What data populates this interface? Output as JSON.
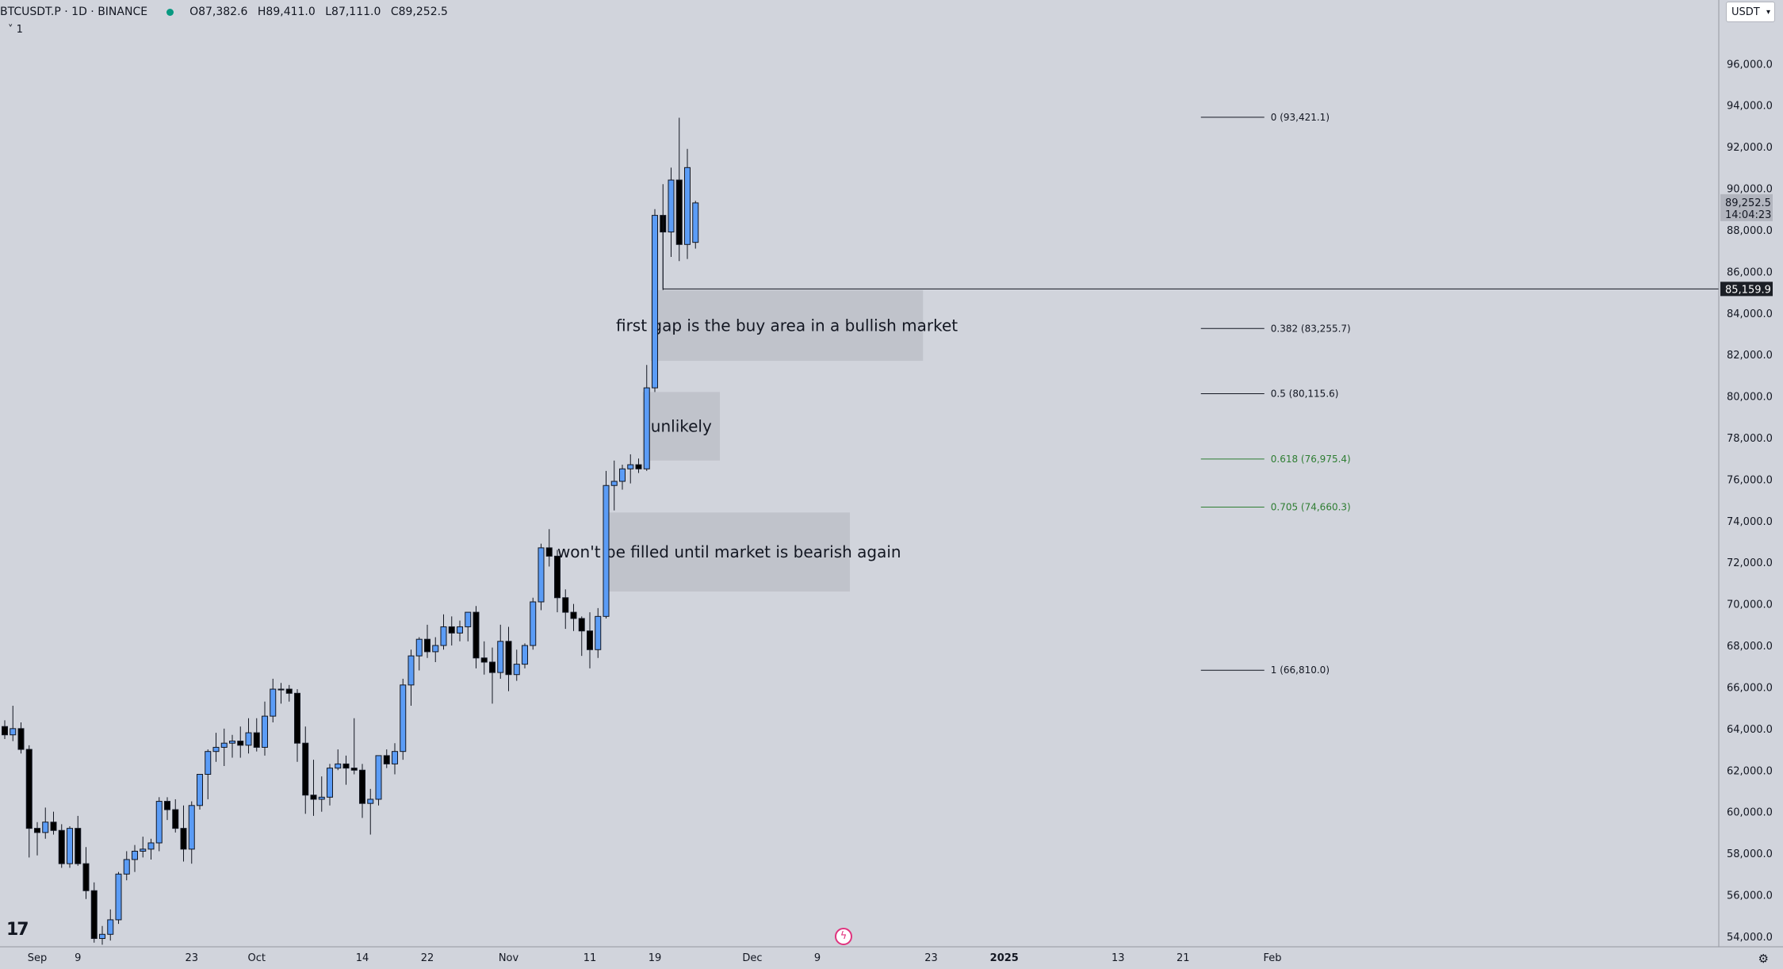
{
  "header": {
    "symbol": "BTCUSDT.P · 1D · BINANCE",
    "open": "O87,382.6",
    "high": "H89,411.0",
    "low": "L87,111.0",
    "close": "C89,252.5",
    "collapse_label": "˅ 1"
  },
  "currency_button": "USDT",
  "colors": {
    "up": "#5b9cf6",
    "down": "#000000",
    "background": "#d1d4dc",
    "fib_gray": "#131722",
    "fib_green": "#2e7d32",
    "badge_dark": "#1c1f26"
  },
  "icons": {
    "logo": "tradingview-logo",
    "flash": "lightning-icon",
    "settings": "gear-icon"
  },
  "chart_data": {
    "type": "candlestick",
    "symbol": "BTCUSDT.P",
    "interval": "1D",
    "exchange": "BINANCE",
    "ylim": [
      53500,
      97500
    ],
    "y_ticks": [
      54000,
      56000,
      58000,
      60000,
      62000,
      64000,
      66000,
      68000,
      70000,
      72000,
      74000,
      76000,
      78000,
      80000,
      82000,
      84000,
      86000,
      88000,
      90000,
      92000,
      94000,
      96000
    ],
    "y_tick_labels": [
      "54,000.0",
      "56,000.0",
      "58,000.0",
      "60,000.0",
      "62,000.0",
      "64,000.0",
      "66,000.0",
      "68,000.0",
      "70,000.0",
      "72,000.0",
      "74,000.0",
      "76,000.0",
      "78,000.0",
      "80,000.0",
      "82,000.0",
      "84,000.0",
      "86,000.0",
      "88,000.0",
      "90,000.0",
      "92,000.0",
      "94,000.0",
      "96,000.0"
    ],
    "x_labels": [
      {
        "day": 4,
        "text": "Sep"
      },
      {
        "day": 9,
        "text": "9"
      },
      {
        "day": 23,
        "text": "23"
      },
      {
        "day": 31,
        "text": "Oct"
      },
      {
        "day": 44,
        "text": "14"
      },
      {
        "day": 52,
        "text": "22"
      },
      {
        "day": 62,
        "text": "Nov"
      },
      {
        "day": 72,
        "text": "11"
      },
      {
        "day": 80,
        "text": "19"
      },
      {
        "day": 92,
        "text": "Dec"
      },
      {
        "day": 100,
        "text": "9"
      },
      {
        "day": 114,
        "text": "23"
      },
      {
        "day": 123,
        "text": "2025"
      },
      {
        "day": 137,
        "text": "13"
      },
      {
        "day": 145,
        "text": "21"
      },
      {
        "day": 156,
        "text": "Feb"
      }
    ],
    "candles": [
      [
        64100,
        64400,
        63500,
        63700
      ],
      [
        63700,
        65100,
        63400,
        64000
      ],
      [
        64000,
        64300,
        62800,
        63000
      ],
      [
        63000,
        63200,
        57800,
        59200
      ],
      [
        59200,
        59500,
        57900,
        59000
      ],
      [
        59000,
        60200,
        58700,
        59500
      ],
      [
        59500,
        60000,
        58900,
        59100
      ],
      [
        59100,
        59400,
        57300,
        57500
      ],
      [
        57500,
        59300,
        57300,
        59200
      ],
      [
        59200,
        59800,
        57400,
        57500
      ],
      [
        57500,
        58300,
        55800,
        56200
      ],
      [
        56200,
        56600,
        53700,
        53900
      ],
      [
        53900,
        54500,
        53600,
        54100
      ],
      [
        54100,
        55300,
        53800,
        54800
      ],
      [
        54800,
        57100,
        54600,
        57000
      ],
      [
        57000,
        58100,
        56700,
        57700
      ],
      [
        57700,
        58400,
        57100,
        58100
      ],
      [
        58100,
        58800,
        57800,
        58200
      ],
      [
        58200,
        58700,
        57700,
        58500
      ],
      [
        58500,
        60700,
        58100,
        60500
      ],
      [
        60500,
        60700,
        59600,
        60100
      ],
      [
        60100,
        60600,
        59000,
        59200
      ],
      [
        59200,
        60300,
        57600,
        58200
      ],
      [
        58200,
        60500,
        57500,
        60300
      ],
      [
        60300,
        61700,
        60100,
        61800
      ],
      [
        61800,
        63000,
        60600,
        62900
      ],
      [
        62900,
        63800,
        62400,
        63100
      ],
      [
        63100,
        64000,
        62200,
        63300
      ],
      [
        63300,
        63700,
        62600,
        63400
      ],
      [
        63400,
        64100,
        62600,
        63200
      ],
      [
        63200,
        64500,
        62800,
        63800
      ],
      [
        63800,
        64500,
        62900,
        63100
      ],
      [
        63100,
        65300,
        62700,
        64600
      ],
      [
        64600,
        66400,
        64300,
        65900
      ],
      [
        65900,
        66200,
        65200,
        65900
      ],
      [
        65900,
        66100,
        65300,
        65700
      ],
      [
        65700,
        65900,
        62400,
        63300
      ],
      [
        63300,
        64100,
        59900,
        60800
      ],
      [
        60800,
        62500,
        59800,
        60600
      ],
      [
        60600,
        61700,
        60000,
        60700
      ],
      [
        60700,
        62300,
        60300,
        62100
      ],
      [
        62100,
        63000,
        62000,
        62300
      ],
      [
        62300,
        62700,
        61300,
        62100
      ],
      [
        62100,
        64500,
        61800,
        62000
      ],
      [
        62000,
        62300,
        59700,
        60400
      ],
      [
        60400,
        61100,
        58900,
        60600
      ],
      [
        60600,
        62500,
        60300,
        62700
      ],
      [
        62700,
        63000,
        62100,
        62300
      ],
      [
        62300,
        63300,
        61800,
        62900
      ],
      [
        62900,
        66400,
        62500,
        66100
      ],
      [
        66100,
        67800,
        65100,
        67500
      ],
      [
        67500,
        68400,
        66800,
        68300
      ],
      [
        68300,
        69000,
        67400,
        67700
      ],
      [
        67700,
        68400,
        67200,
        68000
      ],
      [
        68000,
        69500,
        67800,
        68900
      ],
      [
        68900,
        69400,
        68000,
        68600
      ],
      [
        68600,
        69200,
        68200,
        68900
      ],
      [
        68900,
        69500,
        68200,
        69600
      ],
      [
        69600,
        69900,
        66900,
        67400
      ],
      [
        67400,
        68200,
        66600,
        67200
      ],
      [
        67200,
        67900,
        65200,
        66700
      ],
      [
        66700,
        69000,
        66400,
        68200
      ],
      [
        68200,
        68900,
        65800,
        66600
      ],
      [
        66600,
        67800,
        66300,
        67100
      ],
      [
        67100,
        68100,
        66900,
        68000
      ],
      [
        68000,
        70300,
        67800,
        70100
      ],
      [
        70100,
        72900,
        69700,
        72700
      ],
      [
        72700,
        73600,
        71800,
        72300
      ],
      [
        72300,
        72600,
        69600,
        70300
      ],
      [
        70300,
        70700,
        68800,
        69600
      ],
      [
        69600,
        70000,
        68700,
        69300
      ],
      [
        69300,
        69400,
        67500,
        68700
      ],
      [
        68700,
        69600,
        66900,
        67800
      ],
      [
        67800,
        69800,
        67400,
        69400
      ],
      [
        69400,
        76400,
        69300,
        75700
      ],
      [
        75700,
        76900,
        74500,
        75900
      ],
      [
        75900,
        76700,
        75500,
        76500
      ],
      [
        76500,
        77200,
        75800,
        76700
      ],
      [
        76700,
        77000,
        76300,
        76500
      ],
      [
        76500,
        81500,
        76400,
        80400
      ],
      [
        80400,
        89000,
        80200,
        88700
      ],
      [
        88700,
        90200,
        85100,
        87900
      ],
      [
        87900,
        91000,
        86700,
        90400
      ],
      [
        90400,
        93400,
        86500,
        87300
      ],
      [
        87300,
        91900,
        86600,
        91000
      ],
      [
        87400,
        89400,
        87100,
        89300
      ]
    ],
    "candles_format": [
      "open",
      "high",
      "low",
      "close"
    ],
    "candles_start_day": 0,
    "fib_levels": [
      {
        "label": "0 (93,421.1)",
        "price": 93421.1,
        "color": "#131722"
      },
      {
        "label": "0.382 (83,255.7)",
        "price": 83255.7,
        "color": "#131722"
      },
      {
        "label": "0.5 (80,115.6)",
        "price": 80115.6,
        "color": "#131722"
      },
      {
        "label": "0.618 (76,975.4)",
        "price": 76975.4,
        "color": "#2e7d32"
      },
      {
        "label": "0.705 (74,660.3)",
        "price": 74660.3,
        "color": "#2e7d32"
      },
      {
        "label": "1 (66,810.0)",
        "price": 66810.0,
        "color": "#131722"
      }
    ],
    "fib_start_day": 147,
    "fib_end_day": 155,
    "horizontal_line": {
      "price": 85159.9,
      "label": "85,159.9",
      "from_day": 81
    },
    "annotations": [
      {
        "text": "first gap is the buy area in a bullish market",
        "day0": 79.5,
        "day1": 113,
        "price_top": 85100,
        "price_bottom": 81700
      },
      {
        "text": "unlikely",
        "day0": 78.5,
        "day1": 88,
        "price_top": 80200,
        "price_bottom": 76900
      },
      {
        "text": "won't be filled until market is bearish again",
        "day0": 74.3,
        "day1": 104,
        "price_top": 74400,
        "price_bottom": 70600
      }
    ],
    "last_price_label": "89,252.5",
    "countdown": "14:04:23"
  }
}
